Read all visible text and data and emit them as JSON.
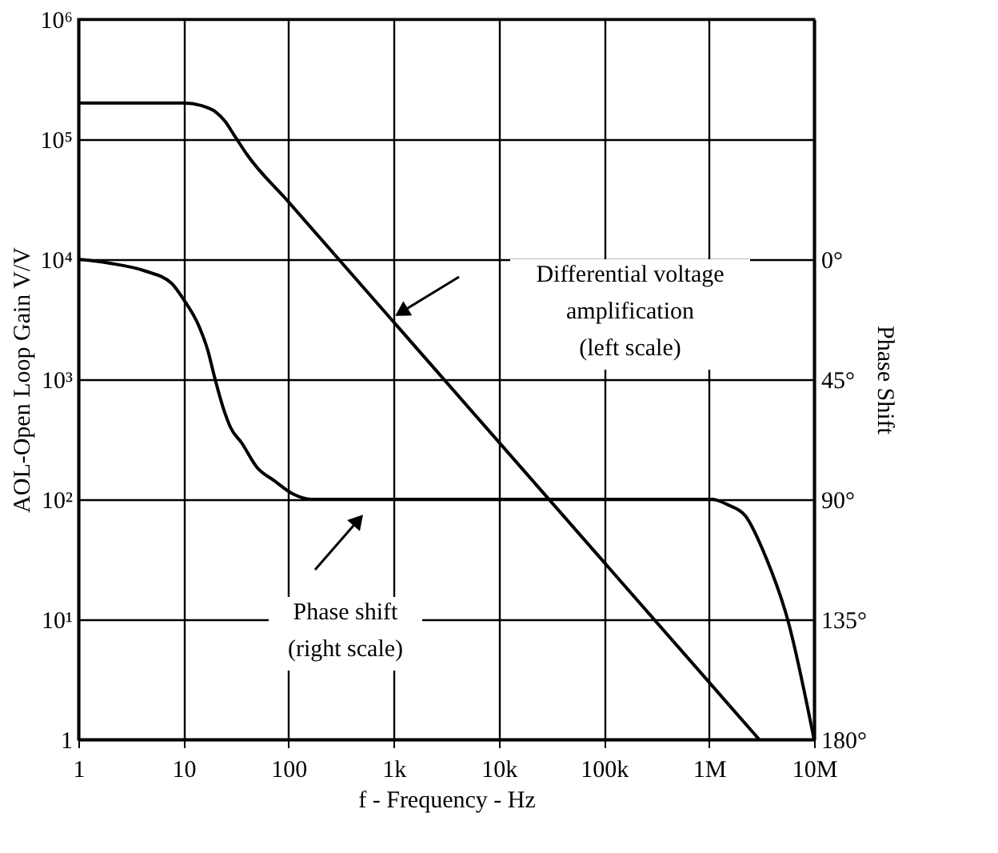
{
  "chart_data": {
    "type": "line",
    "xlabel": "f - Frequency - Hz",
    "ylabel": "AOL-Open Loop Gain V/V",
    "y2label": "Phase Shift",
    "log": "xy",
    "xlim": [
      1,
      10000000
    ],
    "xticks": [
      {
        "value": 1,
        "label": "1"
      },
      {
        "value": 10,
        "label": "10"
      },
      {
        "value": 100,
        "label": "100"
      },
      {
        "value": 1000,
        "label": "1k"
      },
      {
        "value": 10000,
        "label": "10k"
      },
      {
        "value": 100000,
        "label": "100k"
      },
      {
        "value": 1000000,
        "label": "1M"
      },
      {
        "value": 10000000,
        "label": "10M"
      }
    ],
    "ylim": [
      1,
      1000000
    ],
    "yticks": [
      {
        "value": 1,
        "label": "1"
      },
      {
        "value": 10,
        "label": "10¹"
      },
      {
        "value": 100,
        "label": "10²"
      },
      {
        "value": 1000,
        "label": "10³"
      },
      {
        "value": 10000,
        "label": "10⁴"
      },
      {
        "value": 100000,
        "label": "10⁵"
      },
      {
        "value": 1000000,
        "label": "10⁶"
      }
    ],
    "y2lim": [
      180,
      -90
    ],
    "y2ticks": [
      {
        "value": 0,
        "label": "0°"
      },
      {
        "value": 45,
        "label": "45°"
      },
      {
        "value": 90,
        "label": "90°"
      },
      {
        "value": 135,
        "label": "135°"
      },
      {
        "value": 180,
        "label": "180°"
      }
    ],
    "grid": true,
    "marker": "none",
    "line_style": "solid",
    "series": [
      {
        "color": "#000000",
        "x": [
          1,
          10,
          15,
          20,
          25,
          30,
          40,
          100,
          1000,
          10000,
          100000,
          1000000,
          3000000
        ],
        "values": [
          200000,
          200000,
          190000,
          170000,
          140000,
          110000,
          75000,
          30000,
          3000,
          300,
          30,
          3,
          1
        ]
      },
      {
        "color": "#000000",
        "axis": "y2",
        "x": [
          1,
          2,
          4.4,
          7.7,
          10,
          14,
          17,
          20,
          24,
          28,
          36,
          50,
          73,
          110,
          163,
          1000,
          10000,
          100000,
          1070000,
          1500000,
          2200000,
          3500000,
          5600000,
          10000000
        ],
        "values": [
          0,
          1.5,
          4.5,
          9,
          15,
          25,
          34,
          45,
          56,
          63,
          69,
          78,
          83,
          88,
          90,
          90,
          90,
          90,
          90,
          92,
          96,
          112,
          135,
          180
        ]
      }
    ],
    "annotations": [
      "Differential voltage\namplification\n(left scale)",
      "Phase shift\n(right scale)"
    ]
  }
}
